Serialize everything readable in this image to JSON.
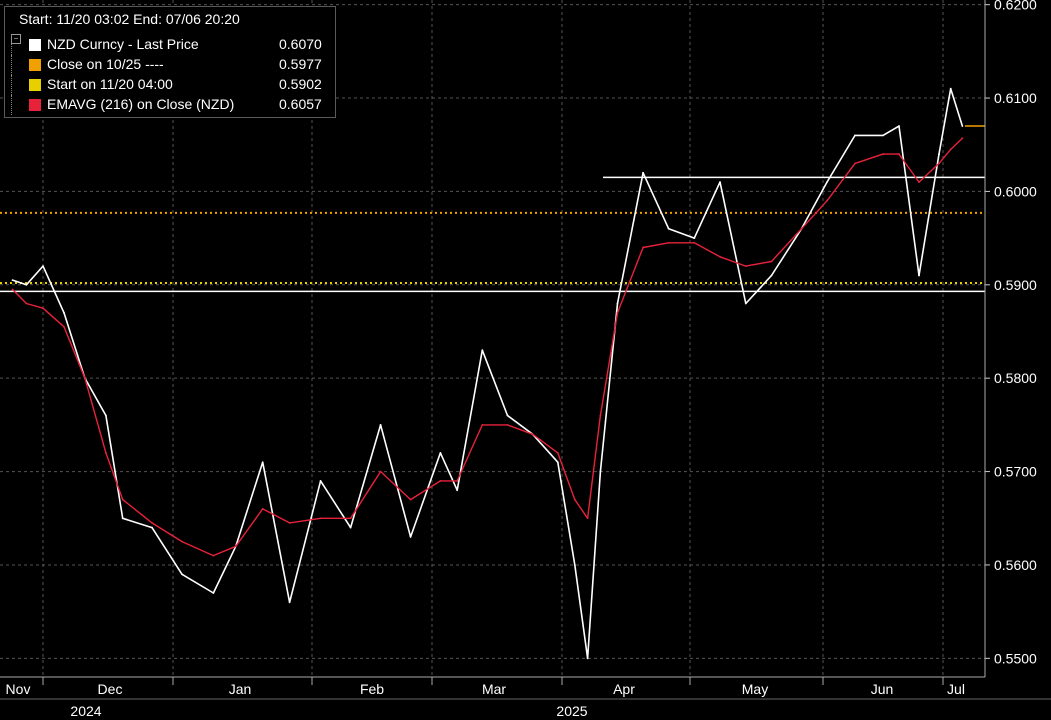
{
  "legend": {
    "header": "Start: 11/20 03:02 End: 07/06 20:20",
    "rows": [
      {
        "name": "NZD Curncy - Last Price",
        "value": "0.6070",
        "color": "#ffffff"
      },
      {
        "name": "Close on 10/25 ----",
        "value": "0.5977",
        "color": "#f0a000"
      },
      {
        "name": "Start on 11/20 04:00",
        "value": "0.5902",
        "color": "#e8d000"
      },
      {
        "name": "EMAVG (216)  on Close (NZD)",
        "value": "0.6057",
        "color": "#e8223a"
      }
    ]
  },
  "chart_data": {
    "type": "line",
    "ylim": [
      0.548,
      0.6205
    ],
    "y_ticks": [
      0.55,
      0.56,
      0.57,
      0.58,
      0.59,
      0.6,
      0.61,
      0.62
    ],
    "y_tick_labels": [
      "0.5500",
      "0.5600",
      "0.5700",
      "0.5800",
      "0.5900",
      "0.6000",
      "0.6100",
      "0.6200"
    ],
    "x_axis": {
      "months": [
        "Nov",
        "Dec",
        "Jan",
        "Feb",
        "Mar",
        "Apr",
        "May",
        "Jun",
        "Jul"
      ],
      "years": [
        "2024",
        "2025"
      ]
    },
    "grid": true,
    "reference_lines": [
      {
        "name": "Close on 10/25",
        "value": 0.5977,
        "color": "#f0a000",
        "style": "dotted"
      },
      {
        "name": "Start on 11/20 04:00",
        "value": 0.5902,
        "color": "#e8d000",
        "style": "dotted"
      },
      {
        "name": "Last Price",
        "value": 0.607,
        "color": "#f0a000",
        "style": "solid"
      }
    ],
    "annotation_lines": [
      {
        "value": 0.6015,
        "from": "Apr",
        "color": "#ffffff"
      },
      {
        "value": 0.5893,
        "from": "Nov",
        "color": "#ffffff"
      }
    ],
    "series": [
      {
        "name": "NZD Curncy - Last Price",
        "color": "#ffffff",
        "x": [
          "Nov 20",
          "Nov 25",
          "Dec 1",
          "Dec 6",
          "Dec 11",
          "Dec 16",
          "Dec 20",
          "Dec 27",
          "Jan 3",
          "Jan 10",
          "Jan 15",
          "Jan 21",
          "Jan 27",
          "Feb 3",
          "Feb 10",
          "Feb 17",
          "Feb 24",
          "Mar 3",
          "Mar 7",
          "Mar 13",
          "Mar 19",
          "Mar 25",
          "Mar 31",
          "Apr 4",
          "Apr 7",
          "Apr 10",
          "Apr 14",
          "Apr 20",
          "Apr 26",
          "May 2",
          "May 8",
          "May 14",
          "May 20",
          "May 27",
          "Jun 2",
          "Jun 9",
          "Jun 16",
          "Jun 20",
          "Jun 25",
          "Jun 30",
          "Jul 3",
          "Jul 6"
        ],
        "y": [
          0.5905,
          0.59,
          0.592,
          0.587,
          0.58,
          0.576,
          0.565,
          0.564,
          0.559,
          0.557,
          0.562,
          0.571,
          0.556,
          0.569,
          0.564,
          0.575,
          0.563,
          0.572,
          0.568,
          0.583,
          0.576,
          0.574,
          0.571,
          0.56,
          0.55,
          0.57,
          0.588,
          0.602,
          0.596,
          0.595,
          0.601,
          0.588,
          0.591,
          0.596,
          0.601,
          0.606,
          0.606,
          0.607,
          0.591,
          0.604,
          0.611,
          0.607
        ]
      },
      {
        "name": "EMAVG (216)  on Close (NZD)",
        "color": "#e8223a",
        "x": [
          "Nov 20",
          "Nov 25",
          "Dec 1",
          "Dec 6",
          "Dec 11",
          "Dec 16",
          "Dec 20",
          "Dec 27",
          "Jan 3",
          "Jan 10",
          "Jan 15",
          "Jan 21",
          "Jan 27",
          "Feb 3",
          "Feb 10",
          "Feb 17",
          "Feb 24",
          "Mar 3",
          "Mar 7",
          "Mar 13",
          "Mar 19",
          "Mar 25",
          "Mar 31",
          "Apr 4",
          "Apr 7",
          "Apr 10",
          "Apr 14",
          "Apr 20",
          "Apr 26",
          "May 2",
          "May 8",
          "May 14",
          "May 20",
          "May 27",
          "Jun 2",
          "Jun 9",
          "Jun 16",
          "Jun 20",
          "Jun 25",
          "Jun 30",
          "Jul 3",
          "Jul 6"
        ],
        "y": [
          0.5895,
          0.588,
          0.5875,
          0.5855,
          0.58,
          0.572,
          0.567,
          0.5645,
          0.5625,
          0.561,
          0.562,
          0.566,
          0.5645,
          0.565,
          0.565,
          0.57,
          0.567,
          0.569,
          0.569,
          0.575,
          0.575,
          0.574,
          0.572,
          0.567,
          0.565,
          0.576,
          0.587,
          0.594,
          0.5945,
          0.5945,
          0.593,
          0.592,
          0.5925,
          0.596,
          0.599,
          0.603,
          0.604,
          0.604,
          0.601,
          0.603,
          0.6045,
          0.6057
        ]
      }
    ]
  }
}
